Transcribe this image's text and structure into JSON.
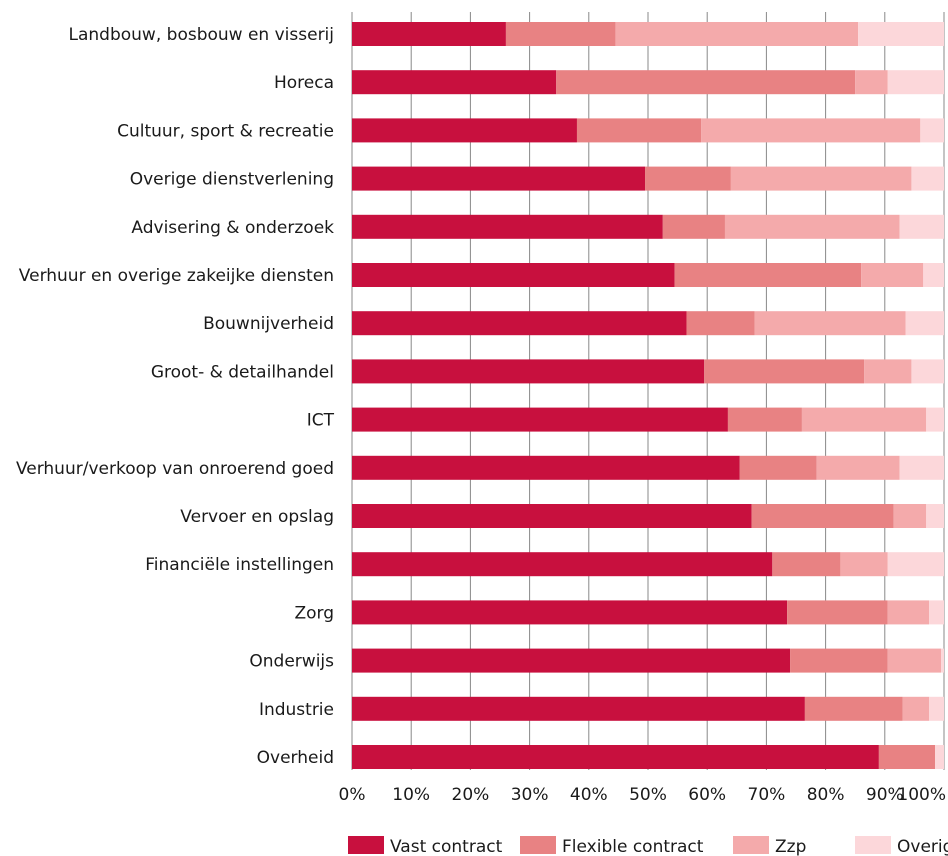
{
  "chart_data": {
    "type": "bar",
    "orientation": "horizontal",
    "stacked": true,
    "percent_scale": true,
    "categories": [
      "Landbouw, bosbouw en visserij",
      "Horeca",
      "Cultuur, sport & recreatie",
      "Overige dienstverlening",
      "Advisering & onderzoek",
      "Verhuur en overige zakeijke diensten",
      "Bouwnijverheid",
      "Groot- & detailhandel",
      "ICT",
      "Verhuur/verkoop van onroerend goed",
      "Vervoer en opslag",
      "Financiële instellingen",
      "Zorg",
      "Onderwijs",
      "Industrie",
      "Overheid"
    ],
    "series": [
      {
        "name": "Vast contract",
        "color": "#c8103e",
        "values": [
          26,
          34.5,
          38,
          49.5,
          52.5,
          54.5,
          56.5,
          59.5,
          63.5,
          65.5,
          67.5,
          71,
          73.5,
          74,
          76.5,
          89
        ]
      },
      {
        "name": "Flexible contract",
        "color": "#e88283",
        "values": [
          18.5,
          50.5,
          21,
          14.5,
          10.5,
          31.5,
          11.5,
          27,
          12.5,
          13,
          24,
          11.5,
          17,
          16.5,
          16.5,
          9.5
        ]
      },
      {
        "name": "Zzp",
        "color": "#f4aaab",
        "values": [
          41,
          5.5,
          37,
          30.5,
          29.5,
          10.5,
          25.5,
          8,
          21,
          14,
          5.5,
          8,
          7,
          9,
          4.5,
          0
        ]
      },
      {
        "name": "Overig",
        "color": "#fcd7da",
        "values": [
          14.5,
          9.5,
          4,
          5.5,
          7.5,
          3.5,
          6.5,
          5.5,
          3,
          7.5,
          3,
          9.5,
          2.5,
          0.5,
          2.5,
          1.5
        ]
      }
    ],
    "x_ticks": [
      "0%",
      "10%",
      "20%",
      "30%",
      "40%",
      "50%",
      "60%",
      "70%",
      "80%",
      "90%",
      "100%"
    ],
    "xlim": [
      0,
      100
    ],
    "grid": true,
    "legend": {
      "position": "bottom"
    },
    "gridline_color": "#888888"
  }
}
